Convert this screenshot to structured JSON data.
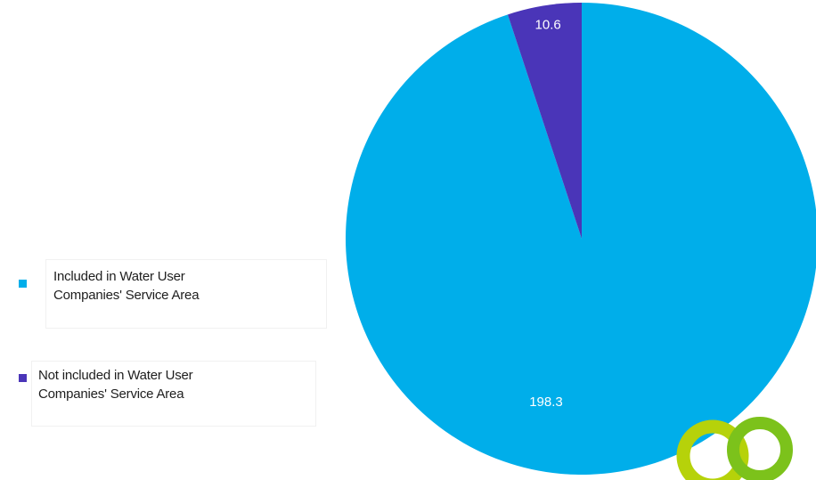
{
  "chart_data": {
    "type": "pie",
    "slices": [
      {
        "label": "Included in Water User Companies' Service Area",
        "value": 198.3,
        "display": "198.3",
        "color": "#00aeea"
      },
      {
        "label": "Not included in Water User Companies' Service Area",
        "value": 10.6,
        "display": "10.6",
        "color": "#4a35b8"
      }
    ],
    "start": "top, clockwise",
    "legend": {
      "placement": "left",
      "items": [
        {
          "line1": " Included in Water User",
          "line2": "Companies' Service Area",
          "color": "#00aeea"
        },
        {
          "line1": "Not included in Water User",
          "line2": "Companies' Service Area",
          "color": "#4a35b8"
        }
      ]
    },
    "label_color": "#ffffff"
  },
  "decoration": {
    "rings": [
      {
        "name": "ring-dark-green",
        "color": "#b6d20a"
      },
      {
        "name": "ring-light-green",
        "color": "#7cc21b"
      }
    ]
  }
}
